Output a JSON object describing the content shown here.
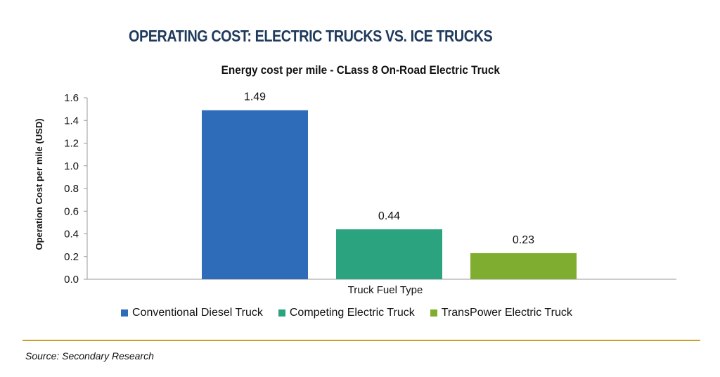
{
  "header": {
    "title": "OPERATING COST: ELECTRIC TRUCKS VS. ICE TRUCKS"
  },
  "chart_data": {
    "type": "bar",
    "title": "Energy cost per mile - CLass 8 On-Road Electric Truck",
    "xlabel": "Truck Fuel Type",
    "ylabel": "Operation Cost per mile (USD)",
    "ylim": [
      0,
      1.6
    ],
    "yticks": [
      "0.0",
      "0.2",
      "0.4",
      "0.6",
      "0.8",
      "1.0",
      "1.2",
      "1.4",
      "1.6"
    ],
    "grid": false,
    "legend_position": "bottom",
    "series": [
      {
        "name": "Conventional Diesel Truck",
        "values": [
          1.49
        ],
        "label": "1.49",
        "color": "#2e6bb8"
      },
      {
        "name": "Competing Electric Truck",
        "values": [
          0.44
        ],
        "label": "0.44",
        "color": "#2aa37e"
      },
      {
        "name": "TransPower Electric Truck",
        "values": [
          0.23
        ],
        "label": "0.23",
        "color": "#7fad2f"
      }
    ]
  },
  "footer": {
    "source": "Source: Secondary Research"
  }
}
